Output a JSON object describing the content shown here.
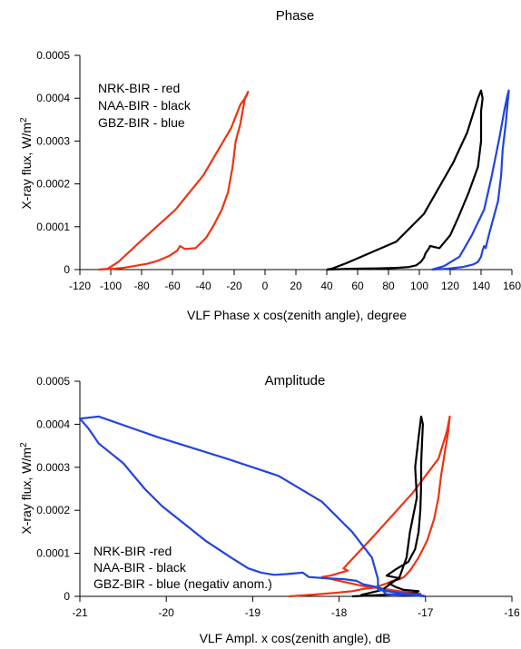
{
  "chart_data": [
    {
      "type": "line",
      "title": "Phase",
      "xlabel": "VLF Phase x cos(zenith angle), degree",
      "ylabel": "X-ray flux, W/m",
      "ylabel_sup": "2",
      "xlim": [
        -120,
        160
      ],
      "ylim": [
        0,
        0.0005
      ],
      "xticks": [
        -120,
        -100,
        -80,
        -60,
        -40,
        -20,
        0,
        20,
        40,
        60,
        80,
        100,
        120,
        140,
        160
      ],
      "xtick_labels": [
        "-120",
        "-100",
        "-80",
        "-60",
        "-40",
        "-20",
        "0",
        "20",
        "40",
        "60",
        "80",
        "100",
        "120",
        "140",
        "160"
      ],
      "yticks": [
        0,
        0.0001,
        0.0002,
        0.0003,
        0.0004,
        0.0005
      ],
      "ytick_labels": [
        "0",
        "0.0001",
        "0.0002",
        "0.0003",
        "0.0004",
        "0.0005"
      ],
      "grid": false,
      "legend_placement": "top-left",
      "legend": [
        "NRK-BIR - red",
        "NAA-BIR - black",
        "GBZ-BIR - blue"
      ],
      "series": [
        {
          "color": "#ee3311",
          "points": [
            [
              -108,
              0
            ],
            [
              -98,
              2e-06
            ],
            [
              -92,
              4e-06
            ],
            [
              -85,
              8e-06
            ],
            [
              -76,
              1.4e-05
            ],
            [
              -70,
              2e-05
            ],
            [
              -62,
              3.2e-05
            ],
            [
              -57,
              4.4e-05
            ],
            [
              -55,
              5.5e-05
            ],
            [
              -52,
              4.8e-05
            ],
            [
              -45,
              5e-05
            ],
            [
              -38,
              7.5e-05
            ],
            [
              -33,
              0.000105
            ],
            [
              -28,
              0.00014
            ],
            [
              -24,
              0.00018
            ],
            [
              -21,
              0.00024
            ],
            [
              -19,
              0.0003
            ],
            [
              -16,
              0.00034
            ],
            [
              -14,
              0.00038
            ],
            [
              -13,
              0.0004
            ],
            [
              -11,
              0.000415
            ],
            [
              -12,
              0.000405
            ],
            [
              -16,
              0.000385
            ],
            [
              -22,
              0.00033
            ],
            [
              -40,
              0.00022
            ],
            [
              -58,
              0.00014
            ],
            [
              -81,
              6.5e-05
            ],
            [
              -95,
              1.8e-05
            ],
            [
              -102,
              2e-06
            ],
            [
              -108,
              0
            ]
          ]
        },
        {
          "color": "#000000",
          "points": [
            [
              40,
              0
            ],
            [
              55,
              2e-06
            ],
            [
              75,
              3e-06
            ],
            [
              85,
              4e-06
            ],
            [
              93,
              6e-06
            ],
            [
              98,
              1e-05
            ],
            [
              101,
              1.8e-05
            ],
            [
              103,
              2.8e-05
            ],
            [
              104,
              3.8e-05
            ],
            [
              106,
              4.8e-05
            ],
            [
              107,
              5.5e-05
            ],
            [
              113,
              5e-05
            ],
            [
              120,
              8e-05
            ],
            [
              125,
              0.00012
            ],
            [
              132,
              0.00018
            ],
            [
              138,
              0.00024
            ],
            [
              140,
              0.0003
            ],
            [
              140,
              0.00037
            ],
            [
              141,
              0.0004
            ],
            [
              140,
              0.000418
            ],
            [
              138,
              0.0004
            ],
            [
              131,
              0.00032
            ],
            [
              122,
              0.00025
            ],
            [
              103,
              0.00013
            ],
            [
              85,
              6.5e-05
            ],
            [
              52,
              1.4e-05
            ],
            [
              43,
              2e-06
            ],
            [
              40,
              0
            ]
          ]
        },
        {
          "color": "#2244dd",
          "points": [
            [
              108,
              0
            ],
            [
              118,
              2e-06
            ],
            [
              128,
              6e-06
            ],
            [
              135,
              1.2e-05
            ],
            [
              138,
              1.8e-05
            ],
            [
              140,
              3e-05
            ],
            [
              141,
              4.5e-05
            ],
            [
              142,
              5.5e-05
            ],
            [
              143,
              5e-05
            ],
            [
              145,
              8e-05
            ],
            [
              148,
              0.00012
            ],
            [
              151,
              0.00016
            ],
            [
              153,
              0.00022
            ],
            [
              154,
              0.00028
            ],
            [
              156,
              0.00034
            ],
            [
              157,
              0.00038
            ],
            [
              158,
              0.000418
            ],
            [
              157,
              0.000405
            ],
            [
              155,
              0.00037
            ],
            [
              152,
              0.00031
            ],
            [
              147,
              0.00022
            ],
            [
              142,
              0.00014
            ],
            [
              134,
              8e-05
            ],
            [
              126,
              3e-05
            ],
            [
              116,
              8e-06
            ],
            [
              108,
              0
            ]
          ]
        }
      ]
    },
    {
      "type": "line",
      "title": "Amplitude",
      "xlabel": "VLF Ampl. x cos(zenith angle), dB",
      "ylabel": "X-ray flux, W/m",
      "ylabel_sup": "2",
      "xlim": [
        -21,
        -16
      ],
      "ylim": [
        0,
        0.0005
      ],
      "xticks": [
        -21,
        -20,
        -19,
        -18,
        -17,
        -16
      ],
      "xtick_labels": [
        "-21",
        "-20",
        "-19",
        "-18",
        "-17",
        "-16"
      ],
      "yticks": [
        0,
        0.0001,
        0.0002,
        0.0003,
        0.0004,
        0.0005
      ],
      "ytick_labels": [
        "0",
        "0.0001",
        "0.0002",
        "0.0003",
        "0.0004",
        "0.0005"
      ],
      "grid": false,
      "legend_placement": "bottom-left",
      "legend": [
        "NRK-BIR -red",
        "NAA-BIR - black",
        "GBZ-BIR - blue (negativ anom.)"
      ],
      "series": [
        {
          "color": "#ee3311",
          "points": [
            [
              -18.58,
              0
            ],
            [
              -18.3,
              4e-06
            ],
            [
              -18.05,
              8e-06
            ],
            [
              -17.85,
              1.2e-05
            ],
            [
              -17.7,
              1.8e-05
            ],
            [
              -17.6,
              2e-05
            ],
            [
              -17.52,
              2.5e-05
            ],
            [
              -17.45,
              3e-05
            ],
            [
              -17.38,
              3.6e-05
            ],
            [
              -17.3,
              4e-05
            ],
            [
              -17.25,
              4.5e-05
            ],
            [
              -17.18,
              6e-05
            ],
            [
              -17.08,
              9e-05
            ],
            [
              -16.98,
              0.00013
            ],
            [
              -16.9,
              0.00018
            ],
            [
              -16.85,
              0.00023
            ],
            [
              -16.82,
              0.00028
            ],
            [
              -16.78,
              0.00033
            ],
            [
              -16.74,
              0.00038
            ],
            [
              -16.72,
              0.000418
            ],
            [
              -16.75,
              0.000385
            ],
            [
              -16.85,
              0.00032
            ],
            [
              -17.15,
              0.00024
            ],
            [
              -17.6,
              0.00014
            ],
            [
              -17.95,
              6.5e-05
            ],
            [
              -17.9,
              6e-05
            ],
            [
              -18.1,
              4.8e-05
            ],
            [
              -18.2,
              4.5e-05
            ],
            [
              -17.75,
              2.5e-05
            ],
            [
              -17.3,
              1.2e-05
            ],
            [
              -17.05,
              6e-06
            ]
          ]
        },
        {
          "color": "#000000",
          "points": [
            [
              -17.85,
              0
            ],
            [
              -17.55,
              3e-06
            ],
            [
              -17.3,
              5e-06
            ],
            [
              -17.12,
              8e-06
            ],
            [
              -17.08,
              1.2e-05
            ],
            [
              -17.25,
              1.5e-05
            ],
            [
              -17.35,
              2.2e-05
            ],
            [
              -17.42,
              3e-05
            ],
            [
              -17.3,
              4.2e-05
            ],
            [
              -17.45,
              4.8e-05
            ],
            [
              -17.35,
              6.2e-05
            ],
            [
              -17.2,
              8e-05
            ],
            [
              -17.12,
              0.00011
            ],
            [
              -17.08,
              0.00015
            ],
            [
              -17.06,
              0.0002
            ],
            [
              -17.05,
              0.00026
            ],
            [
              -17.05,
              0.00031
            ],
            [
              -17.04,
              0.00036
            ],
            [
              -17.03,
              0.0004
            ],
            [
              -17.05,
              0.000418
            ],
            [
              -17.08,
              0.00037
            ],
            [
              -17.12,
              0.0003
            ],
            [
              -17.1,
              0.00023
            ],
            [
              -17.18,
              0.00015
            ],
            [
              -17.22,
              9e-05
            ],
            [
              -17.3,
              4.5e-05
            ],
            [
              -17.5,
              1.5e-05
            ],
            [
              -17.75,
              3e-06
            ]
          ]
        },
        {
          "color": "#2244dd",
          "points": [
            [
              -17.0,
              0
            ],
            [
              -17.2,
              3e-06
            ],
            [
              -17.45,
              5e-06
            ],
            [
              -17.48,
              1e-05
            ],
            [
              -17.5,
              1.8e-05
            ],
            [
              -17.6,
              2.3e-05
            ],
            [
              -17.72,
              2.8e-05
            ],
            [
              -17.8,
              3.6e-05
            ],
            [
              -17.95,
              4e-05
            ],
            [
              -18.15,
              4.2e-05
            ],
            [
              -18.35,
              4.5e-05
            ],
            [
              -18.42,
              5.5e-05
            ],
            [
              -18.6,
              5.2e-05
            ],
            [
              -18.75,
              5e-05
            ],
            [
              -18.9,
              5.5e-05
            ],
            [
              -19.05,
              6.5e-05
            ],
            [
              -19.25,
              9e-05
            ],
            [
              -19.55,
              0.00013
            ],
            [
              -19.8,
              0.00017
            ],
            [
              -20.05,
              0.00021
            ],
            [
              -20.25,
              0.00025
            ],
            [
              -20.5,
              0.00031
            ],
            [
              -20.78,
              0.000355
            ],
            [
              -20.9,
              0.00039
            ],
            [
              -21.0,
              0.000413
            ],
            [
              -20.78,
              0.000418
            ],
            [
              -20.1,
              0.00037
            ],
            [
              -19.3,
              0.00032
            ],
            [
              -18.7,
              0.00028
            ],
            [
              -18.2,
              0.00022
            ],
            [
              -17.85,
              0.00015
            ],
            [
              -17.62,
              9e-05
            ],
            [
              -17.55,
              4e-05
            ],
            [
              -17.55,
              1.5e-05
            ],
            [
              -17.3,
              8e-06
            ],
            [
              -17.1,
              5e-06
            ],
            [
              -17.0,
              0
            ]
          ]
        }
      ]
    }
  ]
}
